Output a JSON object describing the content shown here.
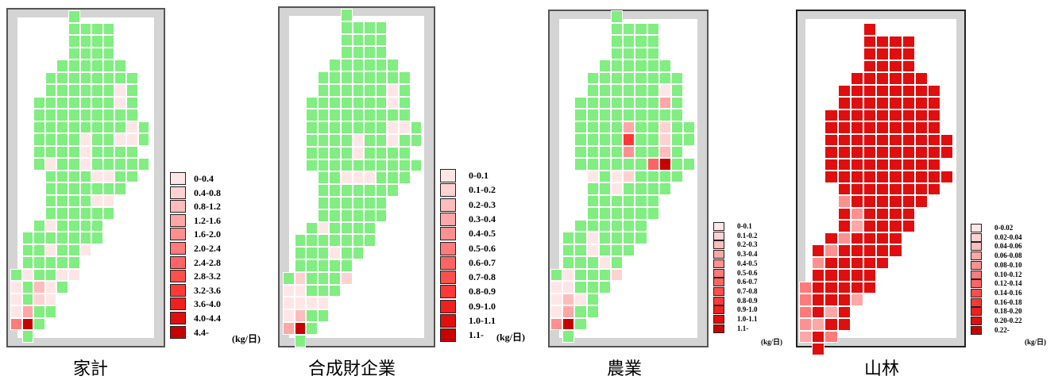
{
  "chart_data": [
    {
      "type": "heatmap",
      "title": "家計",
      "unit": "(kg/日)",
      "legend": [
        "0-0.4",
        "0.4-0.8",
        "0.8-1.2",
        "1.2-1.6",
        "1.6-2.0",
        "2.0-2.4",
        "2.4-2.8",
        "2.8-3.2",
        "3.2-3.6",
        "3.6-4.0",
        "4.0-4.4",
        "4.4-"
      ],
      "class_colors": [
        "#ffe6e6",
        "#ffd2d2",
        "#ffbcbc",
        "#ffa6a6",
        "#ff9090",
        "#ff7a7a",
        "#ff6464",
        "#ff4e4e",
        "#ff3838",
        "#f02020",
        "#e00e0e",
        "#c80000"
      ],
      "below_color": "#80ee80",
      "colored_cells": [
        {
          "row": 6,
          "col": 9,
          "class": 0
        },
        {
          "row": 7,
          "col": 9,
          "class": 0
        },
        {
          "row": 9,
          "col": 10,
          "class": 0
        },
        {
          "row": 10,
          "col": 6,
          "class": 0
        },
        {
          "row": 10,
          "col": 9,
          "class": 0
        },
        {
          "row": 10,
          "col": 10,
          "class": 0
        },
        {
          "row": 11,
          "col": 6,
          "class": 0
        },
        {
          "row": 12,
          "col": 3,
          "class": 0
        },
        {
          "row": 12,
          "col": 6,
          "class": 0
        },
        {
          "row": 13,
          "col": 7,
          "class": 0
        },
        {
          "row": 13,
          "col": 8,
          "class": 0
        },
        {
          "row": 15,
          "col": 7,
          "class": 0
        },
        {
          "row": 15,
          "col": 8,
          "class": 0
        },
        {
          "row": 17,
          "col": 3,
          "class": 0
        },
        {
          "row": 19,
          "col": 3,
          "class": 0
        },
        {
          "row": 19,
          "col": 6,
          "class": 0
        },
        {
          "row": 21,
          "col": 1,
          "class": 0
        },
        {
          "row": 21,
          "col": 5,
          "class": 0
        },
        {
          "row": 21,
          "col": 4,
          "class": 0
        },
        {
          "row": 22,
          "col": 0,
          "class": 0
        },
        {
          "row": 22,
          "col": 2,
          "class": 2
        },
        {
          "row": 22,
          "col": 3,
          "class": 0
        },
        {
          "row": 23,
          "col": 0,
          "class": 0
        },
        {
          "row": 23,
          "col": 2,
          "class": 1
        },
        {
          "row": 23,
          "col": 3,
          "class": 0
        },
        {
          "row": 24,
          "col": 0,
          "class": 0
        },
        {
          "row": 24,
          "col": 1,
          "class": 3
        },
        {
          "row": 25,
          "col": 0,
          "class": 5
        },
        {
          "row": 25,
          "col": 1,
          "class": 11
        }
      ]
    },
    {
      "type": "heatmap",
      "title": "合成財企業",
      "unit": "(kg/日)",
      "legend": [
        "0-0.1",
        "0.1-0.2",
        "0.2-0.3",
        "0.3-0.4",
        "0.4-0.5",
        "0.5-0.6",
        "0.6-0.7",
        "0.7-0.8",
        "0.8-0.9",
        "0.9-1.0",
        "1.0-1.1",
        "1.1-"
      ],
      "class_colors": [
        "#ffe6e6",
        "#ffd2d2",
        "#ffbcbc",
        "#ffa6a6",
        "#ff9090",
        "#ff7a7a",
        "#ff6464",
        "#ff4e4e",
        "#ff3838",
        "#f02020",
        "#e00e0e",
        "#c80000"
      ],
      "below_color": "#80ee80",
      "colored_cells": [
        {
          "row": 6,
          "col": 9,
          "class": 0
        },
        {
          "row": 7,
          "col": 9,
          "class": 0
        },
        {
          "row": 9,
          "col": 9,
          "class": 0
        },
        {
          "row": 9,
          "col": 10,
          "class": 0
        },
        {
          "row": 10,
          "col": 6,
          "class": 0
        },
        {
          "row": 10,
          "col": 9,
          "class": 0
        },
        {
          "row": 11,
          "col": 6,
          "class": 0
        },
        {
          "row": 13,
          "col": 5,
          "class": 0
        },
        {
          "row": 13,
          "col": 6,
          "class": 0
        },
        {
          "row": 13,
          "col": 7,
          "class": 0
        },
        {
          "row": 17,
          "col": 3,
          "class": 0
        },
        {
          "row": 19,
          "col": 4,
          "class": 0
        },
        {
          "row": 21,
          "col": 1,
          "class": 1
        },
        {
          "row": 21,
          "col": 5,
          "class": 1
        },
        {
          "row": 22,
          "col": 0,
          "class": 0
        },
        {
          "row": 22,
          "col": 1,
          "class": 0
        },
        {
          "row": 23,
          "col": 0,
          "class": 0
        },
        {
          "row": 23,
          "col": 1,
          "class": 0
        },
        {
          "row": 23,
          "col": 2,
          "class": 0
        },
        {
          "row": 23,
          "col": 3,
          "class": 0
        },
        {
          "row": 24,
          "col": 0,
          "class": 0
        },
        {
          "row": 24,
          "col": 1,
          "class": 2
        },
        {
          "row": 25,
          "col": 0,
          "class": 3
        },
        {
          "row": 25,
          "col": 1,
          "class": 11
        }
      ]
    },
    {
      "type": "heatmap",
      "title": "農業",
      "unit": "(kg/日)",
      "legend": [
        "0-0.1",
        "0.1-0.2",
        "0.2-0.3",
        "0.3-0.4",
        "0.4-0.5",
        "0.5-0.6",
        "0.6-0.7",
        "0.7-0.8",
        "0.8-0.9",
        "0.9-1.0",
        "1.0-1.1",
        "1.1-"
      ],
      "class_colors": [
        "#ffe6e6",
        "#ffd2d2",
        "#ffbcbc",
        "#ffa6a6",
        "#ff9090",
        "#ff7a7a",
        "#ff6464",
        "#ff4e4e",
        "#ff3838",
        "#f02020",
        "#e00e0e",
        "#c80000"
      ],
      "below_color": "#80ee80",
      "colored_cells": [
        {
          "row": 6,
          "col": 9,
          "class": 0
        },
        {
          "row": 7,
          "col": 9,
          "class": 3
        },
        {
          "row": 9,
          "col": 6,
          "class": 3
        },
        {
          "row": 9,
          "col": 9,
          "class": 1
        },
        {
          "row": 10,
          "col": 6,
          "class": 8
        },
        {
          "row": 10,
          "col": 9,
          "class": 1
        },
        {
          "row": 11,
          "col": 6,
          "class": 4
        },
        {
          "row": 11,
          "col": 9,
          "class": 2
        },
        {
          "row": 12,
          "col": 8,
          "class": 6
        },
        {
          "row": 12,
          "col": 9,
          "class": 11
        },
        {
          "row": 13,
          "col": 3,
          "class": 0
        },
        {
          "row": 13,
          "col": 5,
          "class": 0
        },
        {
          "row": 13,
          "col": 6,
          "class": 1
        },
        {
          "row": 14,
          "col": 5,
          "class": 0
        },
        {
          "row": 18,
          "col": 3,
          "class": 0
        },
        {
          "row": 19,
          "col": 3,
          "class": 0
        },
        {
          "row": 20,
          "col": 4,
          "class": 0
        },
        {
          "row": 21,
          "col": 1,
          "class": 0
        },
        {
          "row": 21,
          "col": 5,
          "class": 1
        },
        {
          "row": 22,
          "col": 0,
          "class": 0
        },
        {
          "row": 22,
          "col": 1,
          "class": 0
        },
        {
          "row": 23,
          "col": 0,
          "class": 0
        },
        {
          "row": 23,
          "col": 1,
          "class": 2
        },
        {
          "row": 23,
          "col": 2,
          "class": 0
        },
        {
          "row": 24,
          "col": 0,
          "class": 0
        },
        {
          "row": 24,
          "col": 1,
          "class": 3
        },
        {
          "row": 25,
          "col": 0,
          "class": 4
        },
        {
          "row": 25,
          "col": 1,
          "class": 11
        }
      ]
    },
    {
      "type": "heatmap",
      "title": "山林",
      "unit": "(kg/日)",
      "legend": [
        "0-0.02",
        "0.02-0.04",
        "0.04-0.06",
        "0.06-0.08",
        "0.08-0.10",
        "0.10-0.12",
        "0.12-0.14",
        "0.14-0.16",
        "0.16-0.18",
        "0.18-0.20",
        "0.20-0.22",
        "0.22-"
      ],
      "class_colors": [
        "#ffe6e6",
        "#ffd2d2",
        "#ffbcbc",
        "#ffa6a6",
        "#ff9090",
        "#ff7a7a",
        "#ff6464",
        "#ff4e4e",
        "#ff3838",
        "#f02020",
        "#e00e0e",
        "#c80000"
      ],
      "below_color": "#80ee80",
      "default_class": 10,
      "colored_cells": [
        {
          "row": 0,
          "col": 7,
          "class": 10
        },
        {
          "row": 0,
          "col": 8,
          "class": 4
        },
        {
          "row": 0,
          "col": 9,
          "class": 4
        },
        {
          "row": 2,
          "col": 4,
          "class": 11
        },
        {
          "row": 4,
          "col": 3,
          "class": 4
        },
        {
          "row": 6,
          "col": 2,
          "class": 4
        },
        {
          "row": 8,
          "col": 1,
          "class": 4
        },
        {
          "row": 9,
          "col": 1,
          "class": 3
        },
        {
          "row": 10,
          "col": 1,
          "class": 4
        },
        {
          "row": 11,
          "col": 1,
          "class": 3
        },
        {
          "row": 12,
          "col": 1,
          "class": 3
        },
        {
          "row": 13,
          "col": 2,
          "class": 4
        },
        {
          "row": 14,
          "col": 3,
          "class": 4
        },
        {
          "row": 15,
          "col": 4,
          "class": 4
        },
        {
          "row": 16,
          "col": 4,
          "class": 3
        },
        {
          "row": 17,
          "col": 3,
          "class": 4
        },
        {
          "row": 18,
          "col": 2,
          "class": 4
        },
        {
          "row": 19,
          "col": 1,
          "class": 4
        },
        {
          "row": 20,
          "col": 0,
          "class": 4
        },
        {
          "row": 21,
          "col": 0,
          "class": 5
        },
        {
          "row": 22,
          "col": 0,
          "class": 5
        },
        {
          "row": 22,
          "col": 4,
          "class": 3
        },
        {
          "row": 23,
          "col": 0,
          "class": 5
        },
        {
          "row": 23,
          "col": 2,
          "class": 3
        },
        {
          "row": 23,
          "col": 5,
          "class": 0
        },
        {
          "row": 24,
          "col": 0,
          "class": 4
        },
        {
          "row": 24,
          "col": 1,
          "class": 3
        },
        {
          "row": 24,
          "col": 6,
          "class": 0
        },
        {
          "row": 25,
          "col": 0,
          "class": 3
        },
        {
          "row": 25,
          "col": 2,
          "class": 5
        },
        {
          "row": 25,
          "col": 3,
          "class": 5
        }
      ]
    }
  ]
}
